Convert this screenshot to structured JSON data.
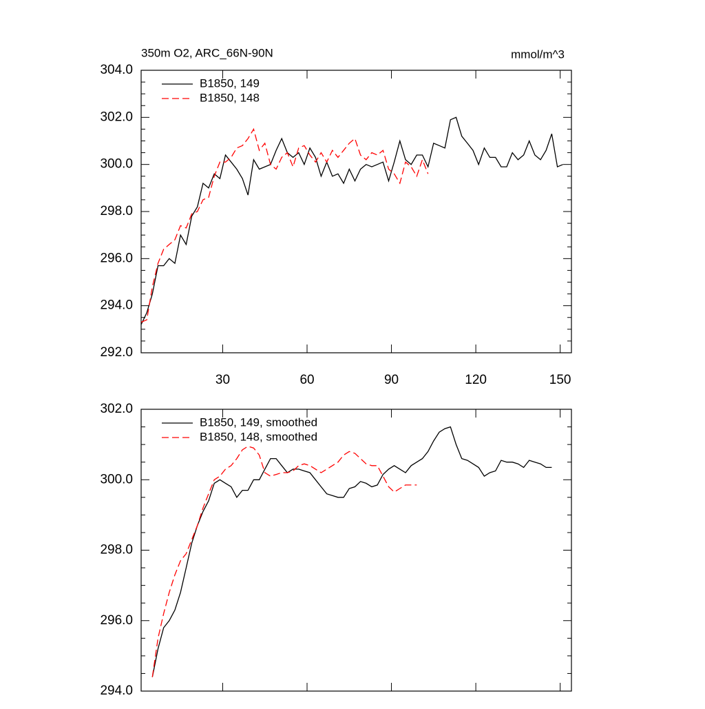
{
  "chart_data": [
    {
      "type": "line",
      "title": "350m O2, ARC_66N-90N",
      "subtitle": "mmol/m^3",
      "xlim": [
        1,
        154
      ],
      "xticks": [
        30,
        60,
        90,
        120,
        150
      ],
      "ylim": [
        292,
        304
      ],
      "yticks": [
        {
          "value": 292,
          "label": "292.0"
        },
        {
          "value": 294,
          "label": "294.0"
        },
        {
          "value": 296,
          "label": "296.0"
        },
        {
          "value": 298,
          "label": "298.0"
        },
        {
          "value": 300,
          "label": "300.0"
        },
        {
          "value": 302,
          "label": "302.0"
        },
        {
          "value": 304,
          "label": "304.0"
        }
      ],
      "series": [
        {
          "name": "B1850, 149",
          "color": "#000000",
          "dash": false,
          "x": [
            1,
            3,
            5,
            7,
            9,
            11,
            13,
            15,
            17,
            19,
            21,
            23,
            25,
            27,
            29,
            31,
            33,
            35,
            37,
            39,
            41,
            43,
            45,
            47,
            49,
            51,
            53,
            55,
            57,
            59,
            61,
            63,
            65,
            67,
            69,
            71,
            73,
            75,
            77,
            79,
            81,
            83,
            85,
            87,
            89,
            91,
            93,
            95,
            97,
            99,
            101,
            103,
            105,
            107,
            109,
            111,
            113,
            115,
            117,
            119,
            121,
            123,
            125,
            127,
            129,
            131,
            133,
            135,
            137,
            139,
            141,
            143,
            145,
            147,
            149,
            151
          ],
          "values": [
            293.2,
            293.7,
            294.5,
            295.7,
            295.7,
            296.0,
            295.8,
            297.0,
            296.6,
            297.8,
            298.2,
            299.2,
            299.0,
            299.6,
            299.4,
            300.4,
            300.1,
            299.8,
            299.4,
            298.7,
            300.2,
            299.8,
            299.9,
            300.0,
            300.6,
            301.1,
            300.5,
            300.3,
            300.5,
            300.0,
            300.7,
            300.3,
            299.5,
            300.1,
            299.5,
            299.6,
            299.2,
            299.8,
            299.3,
            299.8,
            300.0,
            299.9,
            300.0,
            300.1,
            299.3,
            300.1,
            301.0,
            300.2,
            300.0,
            300.4,
            300.4,
            299.9,
            300.9,
            300.8,
            300.7,
            301.9,
            302.0,
            301.2,
            300.9,
            300.6,
            300.0,
            300.7,
            300.3,
            300.3,
            299.9,
            299.9,
            300.5,
            300.2,
            300.4,
            301.0,
            300.4,
            300.2,
            300.6,
            301.3,
            299.9,
            300.0
          ]
        },
        {
          "name": "B1850, 148",
          "color": "#ff0000",
          "dash": true,
          "x": [
            1,
            3,
            5,
            7,
            9,
            11,
            13,
            15,
            17,
            19,
            21,
            23,
            25,
            27,
            29,
            31,
            33,
            35,
            37,
            39,
            41,
            43,
            45,
            47,
            49,
            51,
            53,
            55,
            57,
            59,
            61,
            63,
            65,
            67,
            69,
            71,
            73,
            75,
            77,
            79,
            81,
            83,
            85,
            87,
            89,
            91,
            93,
            95,
            97,
            99,
            101,
            103
          ],
          "values": [
            293.3,
            293.4,
            294.8,
            295.8,
            296.4,
            296.6,
            296.8,
            297.4,
            297.3,
            297.9,
            298.0,
            298.5,
            298.6,
            299.5,
            300.1,
            300.1,
            300.3,
            300.7,
            300.8,
            301.1,
            301.5,
            300.6,
            300.9,
            300.0,
            299.8,
            300.3,
            300.5,
            299.9,
            300.7,
            300.8,
            300.4,
            300.1,
            300.5,
            300.1,
            300.6,
            300.3,
            300.6,
            300.9,
            301.1,
            300.4,
            300.2,
            300.5,
            300.4,
            300.6,
            299.8,
            299.6,
            299.2,
            300.1,
            299.9,
            299.5,
            300.2,
            299.6
          ]
        }
      ]
    },
    {
      "type": "line",
      "xlim": [
        1,
        154
      ],
      "xticks": [
        30,
        60,
        90,
        120,
        150
      ],
      "ylim": [
        294,
        302
      ],
      "yticks": [
        {
          "value": 294,
          "label": "294.0"
        },
        {
          "value": 296,
          "label": "296.0"
        },
        {
          "value": 298,
          "label": "298.0"
        },
        {
          "value": 300,
          "label": "300.0"
        },
        {
          "value": 302,
          "label": "302.0"
        }
      ],
      "series": [
        {
          "name": "B1850, 149, smoothed",
          "color": "#000000",
          "dash": false,
          "x": [
            5,
            7,
            9,
            11,
            13,
            15,
            17,
            19,
            21,
            23,
            25,
            27,
            29,
            31,
            33,
            35,
            37,
            39,
            41,
            43,
            45,
            47,
            49,
            51,
            53,
            55,
            57,
            59,
            61,
            63,
            65,
            67,
            69,
            71,
            73,
            75,
            77,
            79,
            81,
            83,
            85,
            87,
            89,
            91,
            93,
            95,
            97,
            99,
            101,
            103,
            105,
            107,
            109,
            111,
            113,
            115,
            117,
            119,
            121,
            123,
            125,
            127,
            129,
            131,
            133,
            135,
            137,
            139,
            141,
            143,
            145,
            147
          ],
          "values": [
            294.4,
            295.2,
            295.8,
            296.0,
            296.3,
            296.8,
            297.5,
            298.2,
            298.7,
            299.1,
            299.4,
            299.9,
            300.0,
            299.9,
            299.8,
            299.5,
            299.7,
            299.7,
            300.0,
            300.0,
            300.3,
            300.6,
            300.6,
            300.4,
            300.2,
            300.3,
            300.3,
            300.25,
            300.2,
            300.0,
            299.8,
            299.6,
            299.55,
            299.5,
            299.5,
            299.75,
            299.8,
            299.95,
            299.9,
            299.8,
            299.85,
            300.15,
            300.3,
            300.4,
            300.3,
            300.2,
            300.4,
            300.5,
            300.6,
            300.8,
            301.1,
            301.35,
            301.45,
            301.5,
            301.0,
            300.6,
            300.55,
            300.45,
            300.35,
            300.1,
            300.2,
            300.25,
            300.55,
            300.5,
            300.5,
            300.45,
            300.35,
            300.55,
            300.5,
            300.45,
            300.35,
            300.35
          ]
        },
        {
          "name": "B1850, 148, smoothed",
          "color": "#ff0000",
          "dash": true,
          "x": [
            5,
            7,
            9,
            11,
            13,
            15,
            17,
            19,
            21,
            23,
            25,
            27,
            29,
            31,
            33,
            35,
            37,
            39,
            41,
            43,
            45,
            47,
            49,
            51,
            53,
            55,
            57,
            59,
            61,
            63,
            65,
            67,
            69,
            71,
            73,
            75,
            77,
            79,
            81,
            83,
            85,
            87,
            89,
            91,
            93,
            95,
            97,
            99
          ],
          "values": [
            294.4,
            295.5,
            296.2,
            296.8,
            297.3,
            297.7,
            297.9,
            298.3,
            298.7,
            299.2,
            299.6,
            300.0,
            300.1,
            300.3,
            300.4,
            300.6,
            300.85,
            300.95,
            300.9,
            300.7,
            300.2,
            300.1,
            300.15,
            300.2,
            300.2,
            300.25,
            300.4,
            300.45,
            300.4,
            300.3,
            300.2,
            300.3,
            300.4,
            300.5,
            300.7,
            300.8,
            300.75,
            300.6,
            300.45,
            300.4,
            300.4,
            300.1,
            299.8,
            299.65,
            299.75,
            299.85,
            299.85,
            299.85
          ]
        }
      ]
    }
  ]
}
